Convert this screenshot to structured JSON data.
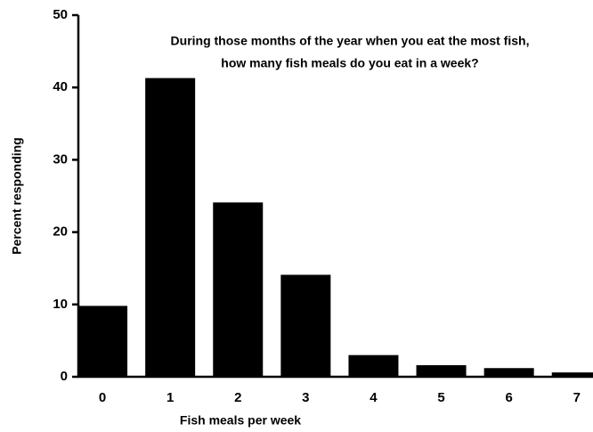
{
  "chart_data": {
    "type": "bar",
    "title": [
      "During those months of the year when you eat the most fish,",
      "how many fish meals do you eat in a week?"
    ],
    "x_label": "Fish meals per week",
    "y_label": "Percent responding",
    "categories": [
      "0",
      "1",
      "2",
      "3",
      "4",
      "5",
      "6",
      "7"
    ],
    "values": [
      9.8,
      41.3,
      24.1,
      14.1,
      3.0,
      1.6,
      1.2,
      0.6
    ],
    "color": "#000000",
    "ylim": [
      0,
      50
    ],
    "yticks": [
      0,
      10,
      20,
      30,
      40,
      50
    ],
    "grid": false
  }
}
